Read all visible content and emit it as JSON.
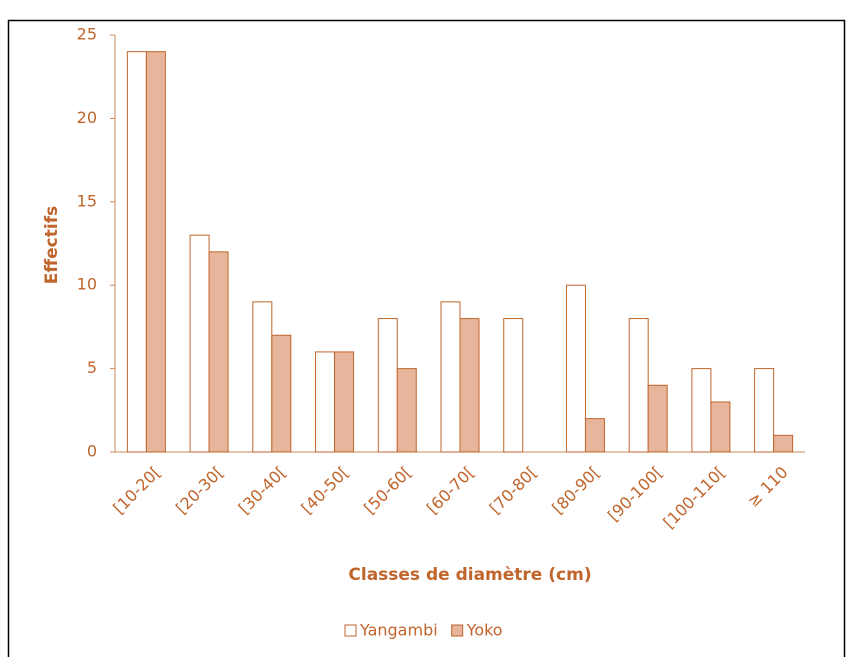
{
  "chart_data": {
    "type": "bar",
    "x_label": "Classes de diamètre (cm)",
    "y_label": "Effectifs",
    "categories": [
      "[10-20[",
      "[20-30[",
      "[30-40[",
      "[40-50[",
      "[50-60[",
      "[60-70[",
      "[70-80[",
      "[80-90[",
      "[90-100[",
      "[100-110[",
      "≥ 110"
    ],
    "series": [
      {
        "name": "Yangambi",
        "color": "#ffffff",
        "values": [
          24,
          13,
          9,
          6,
          8,
          9,
          8,
          10,
          8,
          5,
          5
        ]
      },
      {
        "name": "Yoko",
        "color": "#e6b59b",
        "values": [
          24,
          12,
          7,
          6,
          5,
          8,
          0,
          2,
          4,
          3,
          1
        ]
      }
    ],
    "ylim": [
      0,
      25
    ],
    "yticks": [
      0,
      5,
      10,
      15,
      20,
      25
    ],
    "grid": false,
    "legend": "bottom"
  }
}
